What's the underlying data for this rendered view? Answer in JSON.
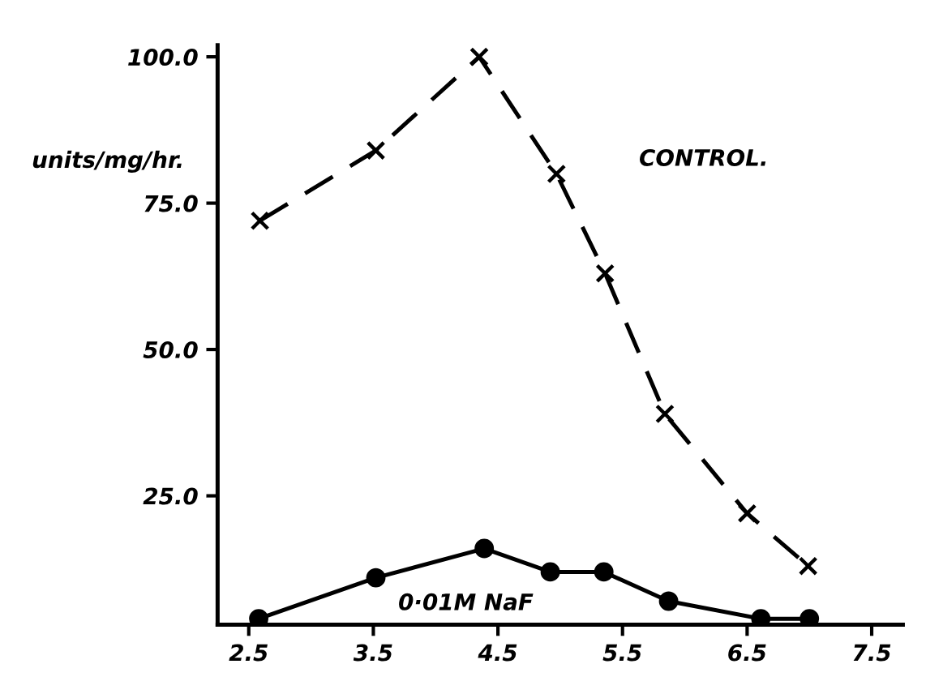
{
  "chart_data": {
    "type": "line",
    "ylabel": "units/mg/hr.",
    "xlim": [
      2.25,
      7.75
    ],
    "ylim": [
      3,
      102
    ],
    "xticks": [
      2.5,
      3.5,
      4.5,
      5.5,
      6.5,
      7.5
    ],
    "yticks": [
      {
        "value": 25,
        "label": "25.0"
      },
      {
        "value": 50,
        "label": "50.0"
      },
      {
        "value": 75,
        "label": "75.0"
      },
      {
        "value": 100,
        "label": "100.0"
      }
    ],
    "grid": false,
    "legend": false,
    "annotations": [
      "CONTROL.",
      "0·01M NaF"
    ],
    "series": [
      {
        "color": "#000000",
        "marker": "cross",
        "line_style": "dashed",
        "x": [
          2.59,
          3.52,
          4.35,
          4.97,
          5.36,
          5.84,
          6.5,
          6.99
        ],
        "values": [
          72,
          84,
          100,
          80,
          63,
          39,
          22,
          13
        ]
      },
      {
        "color": "#000000",
        "marker": "circle",
        "line_style": "solid",
        "x": [
          2.58,
          3.52,
          4.39,
          4.92,
          5.35,
          5.87,
          6.61,
          7.0
        ],
        "values": [
          4,
          11,
          16,
          12,
          12,
          7,
          4,
          4
        ]
      }
    ]
  }
}
